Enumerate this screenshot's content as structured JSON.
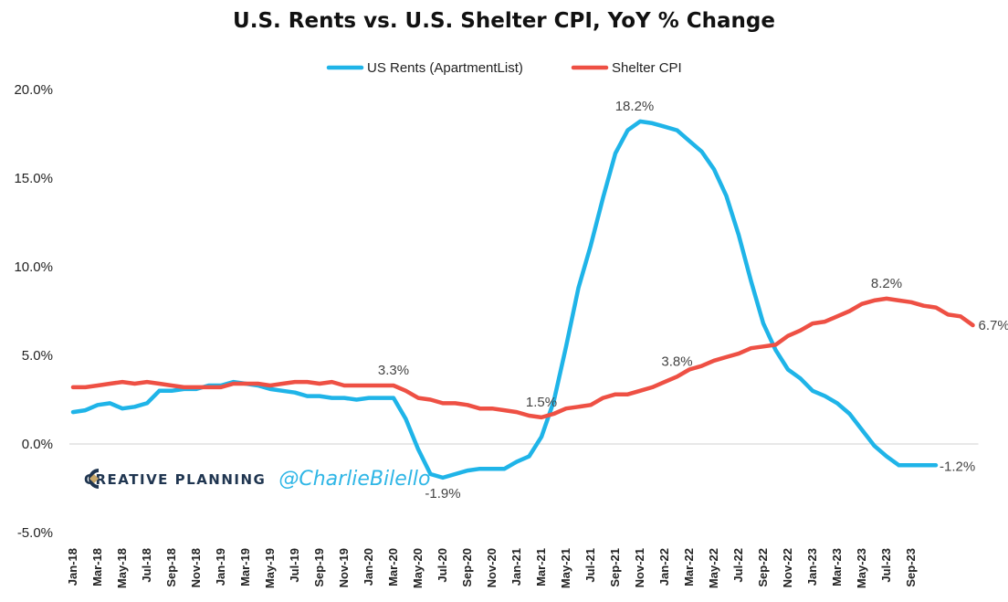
{
  "chart_data": {
    "type": "line",
    "title": "U.S. Rents vs. U.S. Shelter CPI, YoY % Change",
    "xlabel": "",
    "ylabel": "",
    "ylim": [
      -5,
      20
    ],
    "yticks": [
      -5,
      0,
      5,
      10,
      15,
      20
    ],
    "ytick_labels": [
      "-5.0%",
      "0.0%",
      "5.0%",
      "10.0%",
      "15.0%",
      "20.0%"
    ],
    "grid": false,
    "legend_position": "top-center",
    "x_tick_labels": [
      "Jan-18",
      "Mar-18",
      "May-18",
      "Jul-18",
      "Sep-18",
      "Nov-18",
      "Jan-19",
      "Mar-19",
      "May-19",
      "Jul-19",
      "Sep-19",
      "Nov-19",
      "Jan-20",
      "Mar-20",
      "May-20",
      "Jul-20",
      "Sep-20",
      "Nov-20",
      "Jan-21",
      "Mar-21",
      "May-21",
      "Jul-21",
      "Sep-21",
      "Nov-21",
      "Jan-22",
      "Mar-22",
      "May-22",
      "Jul-22",
      "Sep-22",
      "Nov-22",
      "Jan-23",
      "Mar-23",
      "May-23",
      "Jul-23",
      "Sep-23"
    ],
    "series": [
      {
        "name": "US Rents (ApartmentList)",
        "color": "#1fb4e8",
        "values": [
          1.8,
          1.9,
          2.2,
          2.3,
          2.0,
          2.1,
          2.3,
          3.0,
          3.0,
          3.1,
          3.1,
          3.3,
          3.3,
          3.5,
          3.4,
          3.3,
          3.1,
          3.0,
          2.9,
          2.7,
          2.7,
          2.6,
          2.6,
          2.5,
          2.6,
          2.6,
          2.6,
          1.4,
          -0.3,
          -1.7,
          -1.9,
          -1.7,
          -1.5,
          -1.4,
          -1.4,
          -1.4,
          -1.0,
          -0.7,
          0.4,
          2.4,
          5.5,
          8.8,
          11.2,
          13.9,
          16.4,
          17.7,
          18.2,
          18.1,
          17.9,
          17.7,
          17.1,
          16.5,
          15.5,
          14.0,
          11.8,
          9.2,
          6.8,
          5.3,
          4.2,
          3.7,
          3.0,
          2.7,
          2.3,
          1.7,
          0.8,
          -0.1,
          -0.7,
          -1.2,
          -1.2,
          -1.2,
          -1.2
        ]
      },
      {
        "name": "Shelter CPI",
        "color": "#ee5044",
        "values": [
          3.2,
          3.2,
          3.3,
          3.4,
          3.5,
          3.4,
          3.5,
          3.4,
          3.3,
          3.2,
          3.2,
          3.2,
          3.2,
          3.4,
          3.4,
          3.4,
          3.3,
          3.4,
          3.5,
          3.5,
          3.4,
          3.5,
          3.3,
          3.3,
          3.3,
          3.3,
          3.3,
          3.0,
          2.6,
          2.5,
          2.3,
          2.3,
          2.2,
          2.0,
          2.0,
          1.9,
          1.8,
          1.6,
          1.5,
          1.7,
          2.0,
          2.1,
          2.2,
          2.6,
          2.8,
          2.8,
          3.0,
          3.2,
          3.5,
          3.8,
          4.2,
          4.4,
          4.7,
          4.9,
          5.1,
          5.4,
          5.5,
          5.6,
          6.1,
          6.4,
          6.8,
          6.9,
          7.2,
          7.5,
          7.9,
          8.1,
          8.2,
          8.1,
          8.0,
          7.8,
          7.7,
          7.3,
          7.2,
          6.7
        ]
      }
    ],
    "annotations": [
      {
        "series": 0,
        "index": 30,
        "text": "-1.9%"
      },
      {
        "series": 0,
        "index": 46,
        "text": "18.2%"
      },
      {
        "series": 0,
        "index": 70,
        "text": "-1.2%"
      },
      {
        "series": 1,
        "index": 26,
        "text": "3.3%"
      },
      {
        "series": 1,
        "index": 38,
        "text": "1.5%"
      },
      {
        "series": 1,
        "index": 49,
        "text": "3.8%"
      },
      {
        "series": 1,
        "index": 66,
        "text": "8.2%"
      },
      {
        "series": 1,
        "index": 73,
        "text": "6.7%"
      }
    ]
  },
  "branding": {
    "company": "CREATIVE PLANNING",
    "handle": "@CharlieBilello",
    "logo_icon": "creative-planning-logo-icon"
  }
}
